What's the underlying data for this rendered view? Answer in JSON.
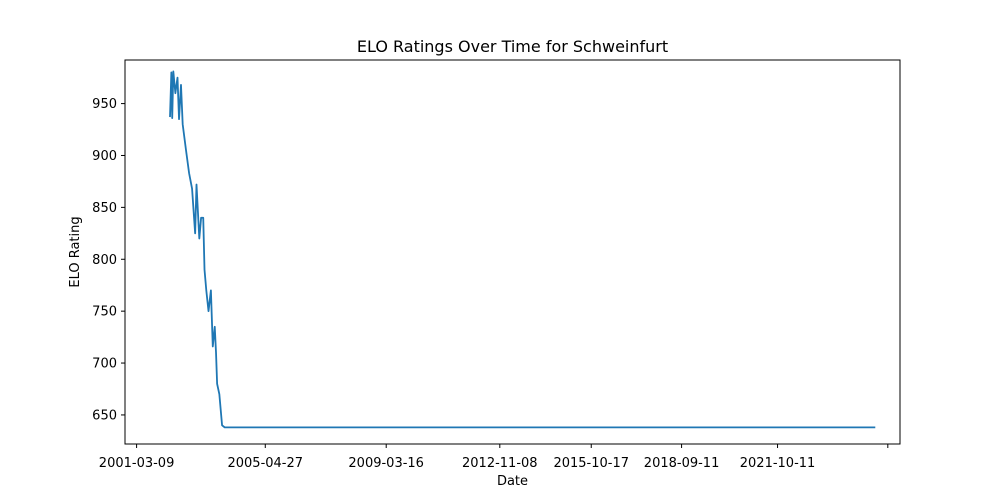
{
  "chart_data": {
    "type": "line",
    "title": "ELO Ratings Over Time for Schweinfurt",
    "xlabel": "Date",
    "ylabel": "ELO Rating",
    "x_ticks": [
      {
        "value": "2001-03-09",
        "label": "2001-03-09"
      },
      {
        "value": "2005-04-27",
        "label": "2005-04-27"
      },
      {
        "value": "2009-03-16",
        "label": "2009-03-16"
      },
      {
        "value": "2012-11-08",
        "label": "2012-11-08"
      },
      {
        "value": "2015-10-17",
        "label": "2015-10-17"
      },
      {
        "value": "2018-09-11",
        "label": "2018-09-11"
      },
      {
        "value": "2021-10-11",
        "label": "2021-10-11"
      },
      {
        "value": "2025-04-27",
        "label": ""
      }
    ],
    "y_ticks": [
      650,
      700,
      750,
      800,
      850,
      900,
      950
    ],
    "xlim": [
      "2000-10-24",
      "2025-09-17"
    ],
    "ylim": [
      622,
      992
    ],
    "grid": false,
    "legend": "none",
    "colors": {
      "series": "#1f77b4",
      "axis": "#000000",
      "background": "#ffffff"
    },
    "series": [
      {
        "x": [
          "2002-04-05",
          "2002-04-21",
          "2002-05-01",
          "2002-05-14",
          "2002-06-07",
          "2002-07-02",
          "2002-07-20",
          "2002-08-12",
          "2002-09-01",
          "2002-10-10",
          "2002-11-15",
          "2002-12-20",
          "2003-01-25",
          "2003-02-10",
          "2003-03-15",
          "2003-04-05",
          "2003-04-30",
          "2003-05-15",
          "2003-06-05",
          "2003-07-01",
          "2003-07-29",
          "2003-08-20",
          "2003-09-12",
          "2003-09-27",
          "2003-10-10",
          "2003-11-05",
          "2003-12-07",
          "2004-01-07",
          "2004-02-14",
          "2004-03-15",
          "2004-04-01",
          "2024-12-01"
        ],
        "y": [
          937,
          980,
          936,
          981,
          960,
          975,
          935,
          968,
          930,
          905,
          883,
          868,
          825,
          872,
          820,
          840,
          840,
          790,
          770,
          750,
          770,
          716,
          735,
          710,
          680,
          670,
          640,
          638,
          638,
          638,
          638,
          638
        ]
      }
    ]
  }
}
